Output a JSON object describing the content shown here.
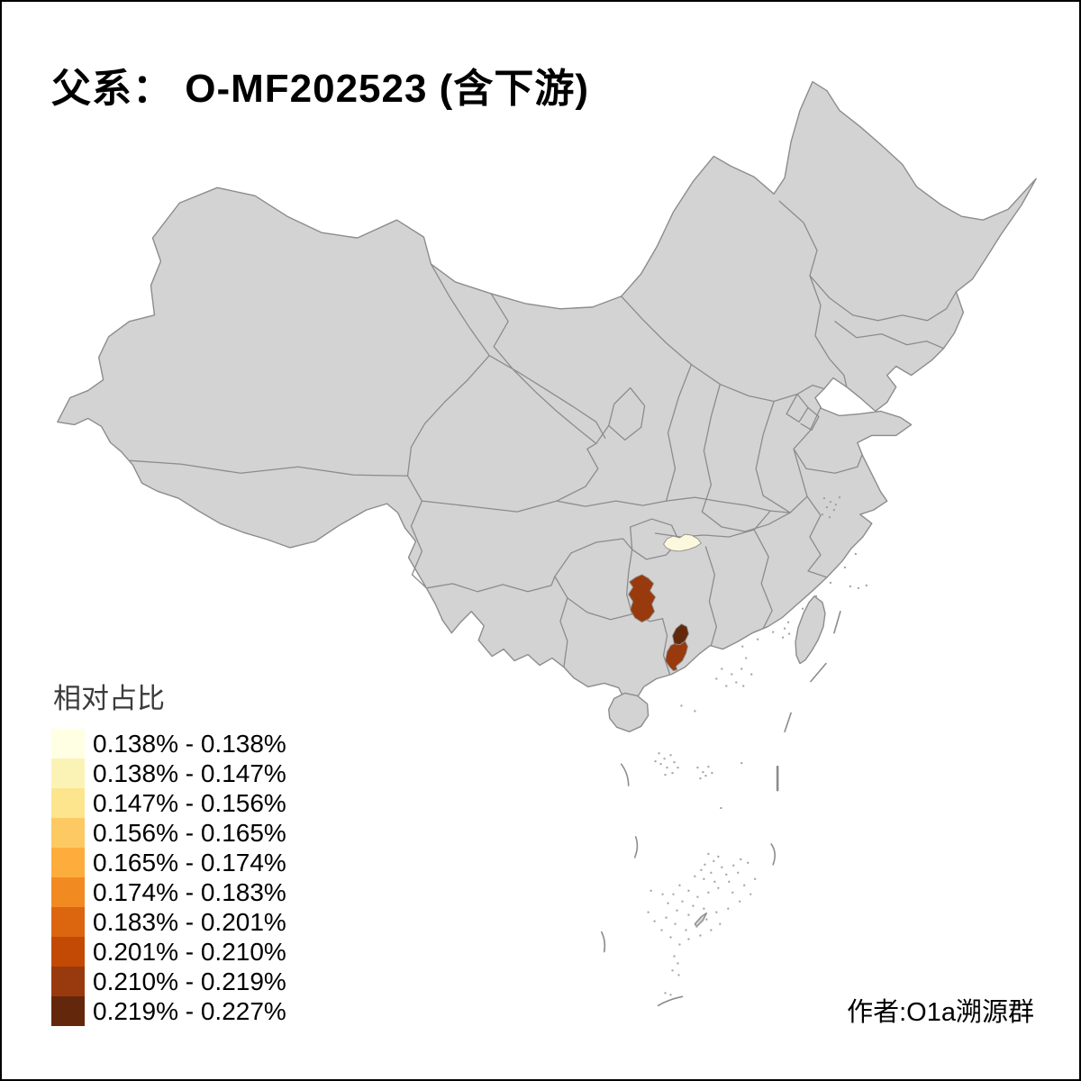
{
  "title": "父系： O-MF202523 (含下游)",
  "attribution": "作者:O1a溯源群",
  "legend": {
    "title": "相对占比",
    "items": [
      {
        "label": "0.138% - 0.138%",
        "color": "#FFFFE3"
      },
      {
        "label": "0.138% - 0.147%",
        "color": "#FBF3B6"
      },
      {
        "label": "0.147% - 0.156%",
        "color": "#FDE58D"
      },
      {
        "label": "0.156% - 0.165%",
        "color": "#FDC963"
      },
      {
        "label": "0.165% - 0.174%",
        "color": "#FDAD3C"
      },
      {
        "label": "0.174% - 0.183%",
        "color": "#F28A22"
      },
      {
        "label": "0.183% - 0.201%",
        "color": "#DC6510"
      },
      {
        "label": "0.201% - 0.210%",
        "color": "#C24A04"
      },
      {
        "label": "0.210% - 0.219%",
        "color": "#993A0E"
      },
      {
        "label": "0.219% - 0.227%",
        "color": "#63280B"
      }
    ]
  },
  "map": {
    "base_fill": "#D3D3D3",
    "border_color": "#8C8C8C",
    "background": "#FFFFFF",
    "frame_color": "#000000",
    "highlighted_regions": [
      {
        "id": "highlight-1",
        "approx_location": "north Hunan area",
        "value_range": "0.138% - 0.138%",
        "color": "#FCF8DC"
      },
      {
        "id": "highlight-2",
        "approx_location": "west Hunan / east Guizhou area",
        "value_range": "0.210% - 0.219%",
        "color": "#993A0E"
      },
      {
        "id": "highlight-3",
        "approx_location": "west Guangdong coastal area",
        "value_range": "0.210% - 0.219%",
        "color": "#993A0E"
      },
      {
        "id": "highlight-4",
        "approx_location": "west Guangdong inland area",
        "value_range": "0.219% - 0.227%",
        "color": "#63280B"
      }
    ]
  },
  "chart_data": {
    "type": "choropleth_map",
    "title": "父系： O-MF202523 (含下游)",
    "legend_title": "相对占比",
    "legend_position": "bottom-left",
    "classes": [
      {
        "range": "0.138% - 0.138%",
        "color": "#FFFFE3"
      },
      {
        "range": "0.138% - 0.147%",
        "color": "#FBF3B6"
      },
      {
        "range": "0.147% - 0.156%",
        "color": "#FDE58D"
      },
      {
        "range": "0.156% - 0.165%",
        "color": "#FDC963"
      },
      {
        "range": "0.165% - 0.174%",
        "color": "#FDAD3C"
      },
      {
        "range": "0.174% - 0.183%",
        "color": "#F28A22"
      },
      {
        "range": "0.183% - 0.201%",
        "color": "#DC6510"
      },
      {
        "range": "0.201% - 0.210%",
        "color": "#C24A04"
      },
      {
        "range": "0.210% - 0.219%",
        "color": "#993A0E"
      },
      {
        "range": "0.219% - 0.227%",
        "color": "#63280B"
      }
    ],
    "colored_regions": [
      {
        "approx_location": "north Hunan area",
        "class": "0.138% - 0.138%"
      },
      {
        "approx_location": "west Hunan / east Guizhou area",
        "class": "0.210% - 0.219%"
      },
      {
        "approx_location": "west Guangdong coastal area",
        "class": "0.210% - 0.219%"
      },
      {
        "approx_location": "west Guangdong inland area",
        "class": "0.219% - 0.227%"
      }
    ],
    "uncolored_region_fill": "#D3D3D3"
  }
}
